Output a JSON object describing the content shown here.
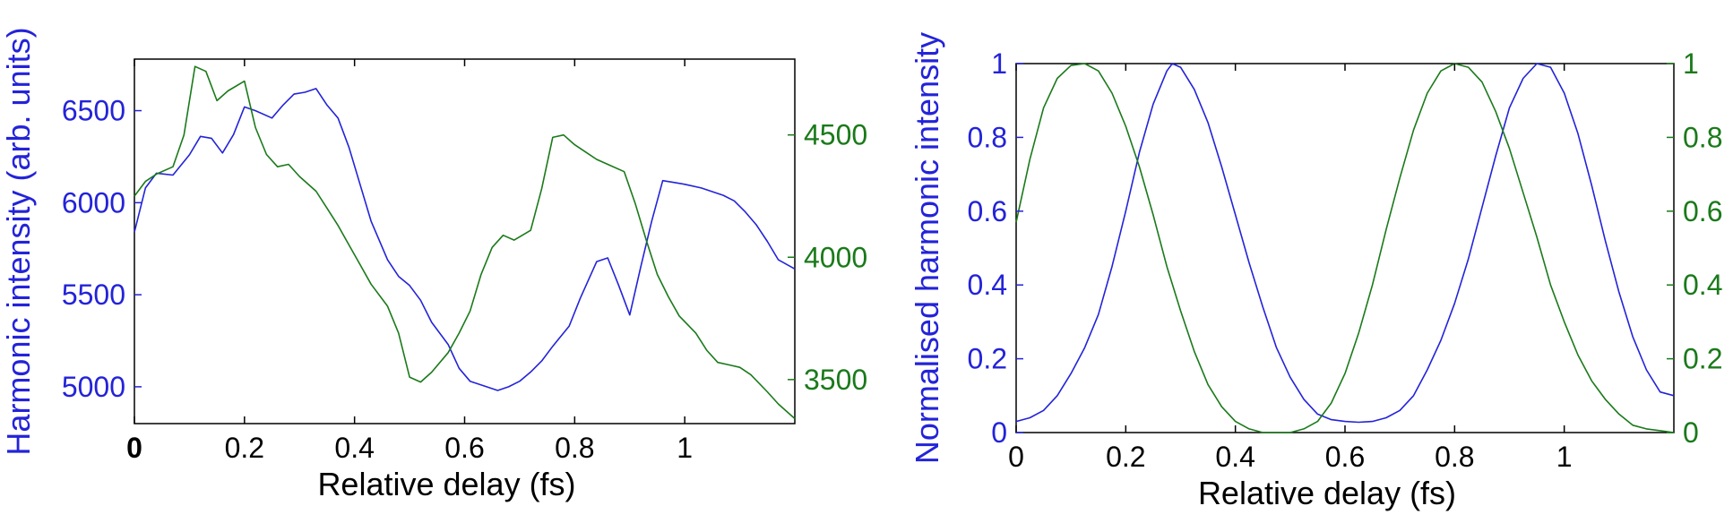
{
  "colors": {
    "blue": "#2323d9",
    "green": "#1a7a1a",
    "axis": "#000000"
  },
  "chart_data": [
    {
      "type": "line",
      "xlabel": "Relative delay (fs)",
      "ylabel": "Harmonic intensity (arb. units)",
      "xlim": [
        0,
        1.2
      ],
      "ylim": [
        4800,
        6780
      ],
      "y2lim": [
        3320,
        4810
      ],
      "xticks": [
        0,
        0.2,
        0.4,
        0.6,
        0.8,
        1
      ],
      "xtick_labels": [
        "0",
        "0.2",
        "0.4",
        "0.6",
        "0.8",
        "1"
      ],
      "yticks": [
        5000,
        5500,
        6000,
        6500
      ],
      "ytick_labels": [
        "5000",
        "5500",
        "6000",
        "6500"
      ],
      "y2ticks": [
        3500,
        4000,
        4500
      ],
      "y2tick_labels": [
        "3500",
        "4000",
        "4500"
      ],
      "series": [
        {
          "axis": "left",
          "color": "#2323d9",
          "x": [
            0,
            0.02,
            0.04,
            0.07,
            0.1,
            0.12,
            0.14,
            0.16,
            0.18,
            0.2,
            0.22,
            0.25,
            0.27,
            0.29,
            0.31,
            0.33,
            0.35,
            0.37,
            0.39,
            0.41,
            0.43,
            0.46,
            0.48,
            0.5,
            0.52,
            0.54,
            0.57,
            0.59,
            0.61,
            0.64,
            0.66,
            0.68,
            0.7,
            0.72,
            0.74,
            0.76,
            0.79,
            0.81,
            0.84,
            0.86,
            0.88,
            0.9,
            0.92,
            0.94,
            0.96,
            0.98,
            1.0,
            1.03,
            1.05,
            1.07,
            1.09,
            1.11,
            1.13,
            1.15,
            1.17,
            1.2
          ],
          "y": [
            5840,
            6080,
            6160,
            6150,
            6260,
            6360,
            6350,
            6270,
            6370,
            6520,
            6500,
            6460,
            6530,
            6590,
            6600,
            6620,
            6530,
            6460,
            6300,
            6100,
            5900,
            5690,
            5600,
            5550,
            5470,
            5350,
            5230,
            5100,
            5030,
            5000,
            4980,
            5000,
            5030,
            5080,
            5140,
            5220,
            5330,
            5480,
            5680,
            5700,
            5550,
            5390,
            5650,
            5900,
            6120,
            6110,
            6100,
            6080,
            6060,
            6040,
            6010,
            5950,
            5880,
            5790,
            5690,
            5640
          ]
        },
        {
          "axis": "right",
          "color": "#1a7a1a",
          "x": [
            0,
            0.02,
            0.04,
            0.07,
            0.09,
            0.11,
            0.13,
            0.15,
            0.17,
            0.2,
            0.22,
            0.24,
            0.26,
            0.28,
            0.3,
            0.33,
            0.35,
            0.37,
            0.39,
            0.41,
            0.43,
            0.46,
            0.48,
            0.5,
            0.52,
            0.54,
            0.57,
            0.59,
            0.61,
            0.63,
            0.65,
            0.67,
            0.69,
            0.72,
            0.74,
            0.76,
            0.78,
            0.8,
            0.82,
            0.84,
            0.86,
            0.89,
            0.91,
            0.93,
            0.95,
            0.97,
            0.99,
            1.02,
            1.04,
            1.06,
            1.08,
            1.1,
            1.12,
            1.15,
            1.17,
            1.2
          ],
          "y": [
            4250,
            4310,
            4340,
            4370,
            4500,
            4780,
            4760,
            4640,
            4680,
            4720,
            4530,
            4420,
            4370,
            4380,
            4330,
            4270,
            4200,
            4130,
            4050,
            3970,
            3890,
            3800,
            3690,
            3510,
            3490,
            3530,
            3610,
            3690,
            3780,
            3930,
            4040,
            4090,
            4070,
            4110,
            4280,
            4490,
            4500,
            4460,
            4430,
            4400,
            4380,
            4350,
            4220,
            4070,
            3930,
            3840,
            3760,
            3690,
            3620,
            3570,
            3560,
            3550,
            3520,
            3450,
            3400,
            3340
          ]
        }
      ]
    },
    {
      "type": "line",
      "xlabel": "Relative delay (fs)",
      "ylabel": "Normalised harmonic intensity",
      "xlim": [
        0,
        1.2
      ],
      "ylim": [
        0,
        1
      ],
      "y2lim": [
        0,
        1
      ],
      "xticks": [
        0,
        0.2,
        0.4,
        0.6,
        0.8,
        1
      ],
      "xtick_labels": [
        "0",
        "0.2",
        "0.4",
        "0.6",
        "0.8",
        "1"
      ],
      "yticks": [
        0,
        0.2,
        0.4,
        0.6,
        0.8,
        1
      ],
      "ytick_labels": [
        "0",
        "0.2",
        "0.4",
        "0.6",
        "0.8",
        "1"
      ],
      "y2ticks": [
        0,
        0.2,
        0.4,
        0.6,
        0.8,
        1
      ],
      "y2tick_labels": [
        "0",
        "0.2",
        "0.4",
        "0.6",
        "0.8",
        "1"
      ],
      "series": [
        {
          "axis": "left",
          "color": "#2323d9",
          "x": [
            0,
            0.025,
            0.05,
            0.075,
            0.1,
            0.125,
            0.15,
            0.175,
            0.2,
            0.225,
            0.25,
            0.275,
            0.285,
            0.3,
            0.325,
            0.35,
            0.375,
            0.4,
            0.425,
            0.45,
            0.475,
            0.5,
            0.525,
            0.55,
            0.575,
            0.6,
            0.625,
            0.65,
            0.675,
            0.7,
            0.725,
            0.75,
            0.775,
            0.8,
            0.825,
            0.85,
            0.875,
            0.9,
            0.925,
            0.95,
            0.975,
            1.0,
            1.025,
            1.05,
            1.075,
            1.1,
            1.125,
            1.15,
            1.175,
            1.2
          ],
          "y": [
            0.03,
            0.04,
            0.06,
            0.1,
            0.16,
            0.23,
            0.32,
            0.45,
            0.6,
            0.76,
            0.89,
            0.98,
            1.0,
            0.99,
            0.93,
            0.84,
            0.72,
            0.59,
            0.46,
            0.34,
            0.23,
            0.15,
            0.09,
            0.05,
            0.035,
            0.03,
            0.028,
            0.03,
            0.04,
            0.06,
            0.1,
            0.17,
            0.25,
            0.35,
            0.47,
            0.61,
            0.75,
            0.88,
            0.96,
            1.0,
            0.99,
            0.92,
            0.81,
            0.67,
            0.52,
            0.38,
            0.26,
            0.17,
            0.11,
            0.1
          ]
        },
        {
          "axis": "right",
          "color": "#1a7a1a",
          "x": [
            0,
            0.025,
            0.05,
            0.075,
            0.1,
            0.125,
            0.15,
            0.175,
            0.2,
            0.225,
            0.25,
            0.275,
            0.3,
            0.325,
            0.35,
            0.375,
            0.4,
            0.425,
            0.45,
            0.475,
            0.5,
            0.525,
            0.55,
            0.575,
            0.6,
            0.625,
            0.65,
            0.675,
            0.7,
            0.725,
            0.75,
            0.775,
            0.8,
            0.825,
            0.85,
            0.875,
            0.9,
            0.925,
            0.95,
            0.975,
            1.0,
            1.025,
            1.05,
            1.075,
            1.1,
            1.125,
            1.15,
            1.175,
            1.2
          ],
          "y": [
            0.57,
            0.74,
            0.88,
            0.96,
            0.995,
            1.0,
            0.98,
            0.92,
            0.83,
            0.72,
            0.59,
            0.45,
            0.33,
            0.22,
            0.13,
            0.07,
            0.03,
            0.01,
            0.0,
            0.0,
            0.0,
            0.01,
            0.03,
            0.08,
            0.16,
            0.27,
            0.4,
            0.55,
            0.69,
            0.82,
            0.92,
            0.98,
            1.0,
            0.99,
            0.95,
            0.87,
            0.77,
            0.65,
            0.53,
            0.4,
            0.3,
            0.21,
            0.14,
            0.09,
            0.05,
            0.02,
            0.01,
            0.005,
            0.0
          ]
        }
      ]
    }
  ]
}
